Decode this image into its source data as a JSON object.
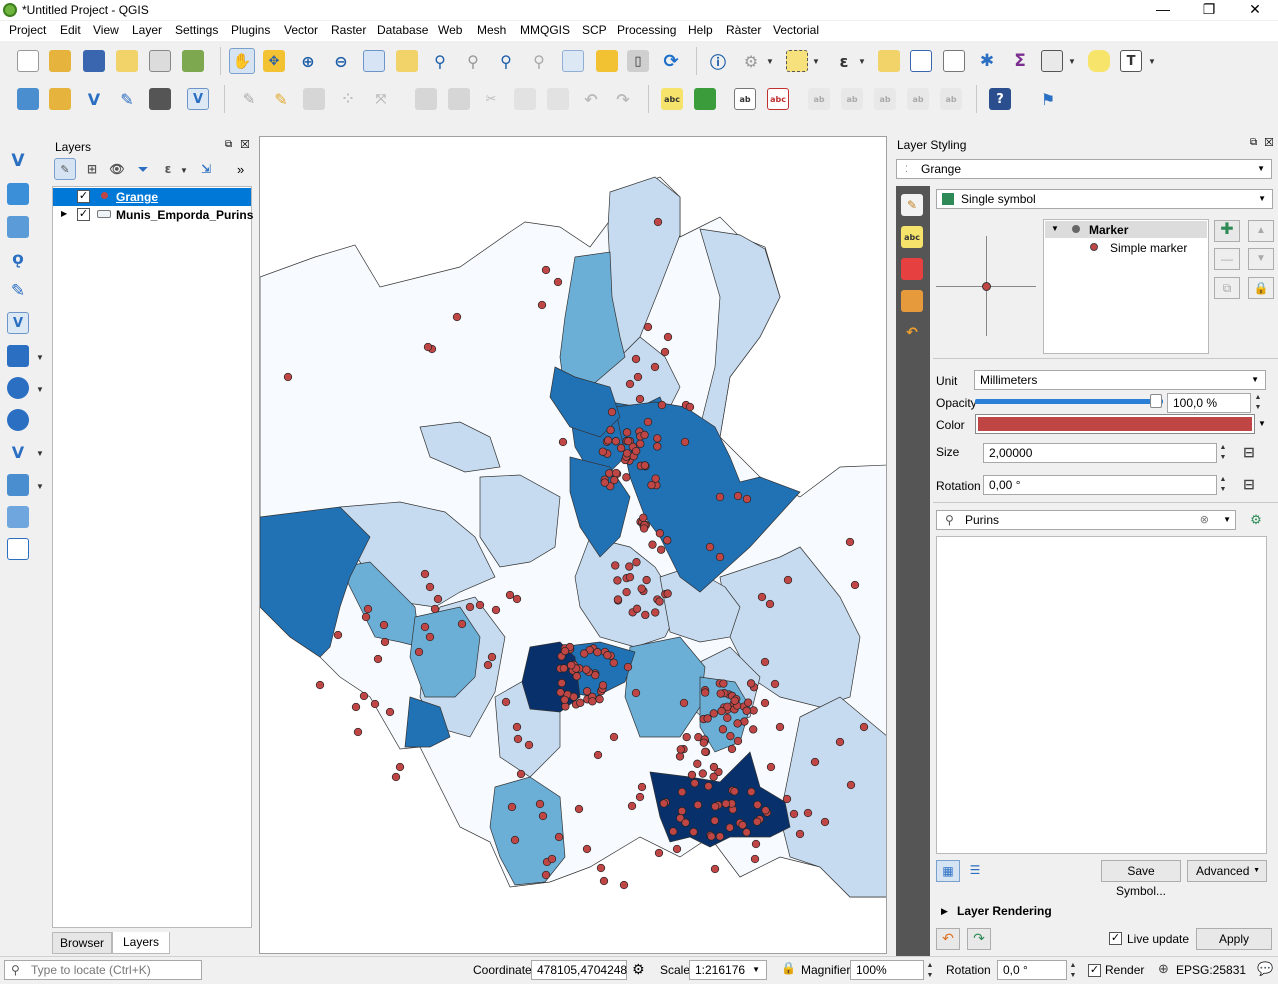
{
  "window": {
    "title": "*Untitled Project - QGIS",
    "controls": [
      "—",
      "❐",
      "✕"
    ]
  },
  "menu": [
    "Project",
    "Edit",
    "View",
    "Layer",
    "Settings",
    "Plugins",
    "Vector",
    "Raster",
    "Database",
    "Web",
    "Mesh",
    "MMQGIS",
    "SCP",
    "Processing",
    "Help",
    "Ràster",
    "Vectorial"
  ],
  "layers_panel": {
    "title": "Layers",
    "items": [
      {
        "name": "Grange",
        "checked": true,
        "selected": true,
        "symbol_color": "#c04646"
      },
      {
        "name": "Munis_Emporda_Purins",
        "checked": true,
        "selected": false
      }
    ],
    "tabs": [
      "Browser",
      "Layers"
    ]
  },
  "styling": {
    "title": "Layer Styling",
    "layer_select": "Grange",
    "renderer": "Single symbol",
    "tree": {
      "root": "Marker",
      "child": "Simple marker"
    },
    "unit_label": "Unit",
    "unit": "Millimeters",
    "opacity_label": "Opacity",
    "opacity": "100,0 %",
    "opacity_fraction": 1.0,
    "color_label": "Color",
    "color": "#c04646",
    "size_label": "Size",
    "size": "2,00000",
    "rotation_label": "Rotation",
    "rotation": "0,00 °",
    "search": "Purins",
    "save_symbol": "Save Symbol...",
    "advanced": "Advanced",
    "layer_rendering": "Layer Rendering",
    "live_update": "Live update",
    "apply": "Apply"
  },
  "status": {
    "locate_placeholder": "Type to locate (Ctrl+K)",
    "coordinate_label": "Coordinate",
    "coordinate": "478105,4704248",
    "scale_label": "Scale",
    "scale": "1:216176",
    "magnifier_label": "Magnifier",
    "magnifier": "100%",
    "rotation_label": "Rotation",
    "rotation": "0,0 °",
    "render_label": "Render",
    "crs": "EPSG:25831"
  },
  "colors": {
    "point": "#c04646",
    "class1": "#f7fbff",
    "class2": "#c6dbef",
    "class3": "#6baed6",
    "class4": "#2171b5",
    "class5": "#08306b",
    "selection": "#0078d7"
  }
}
